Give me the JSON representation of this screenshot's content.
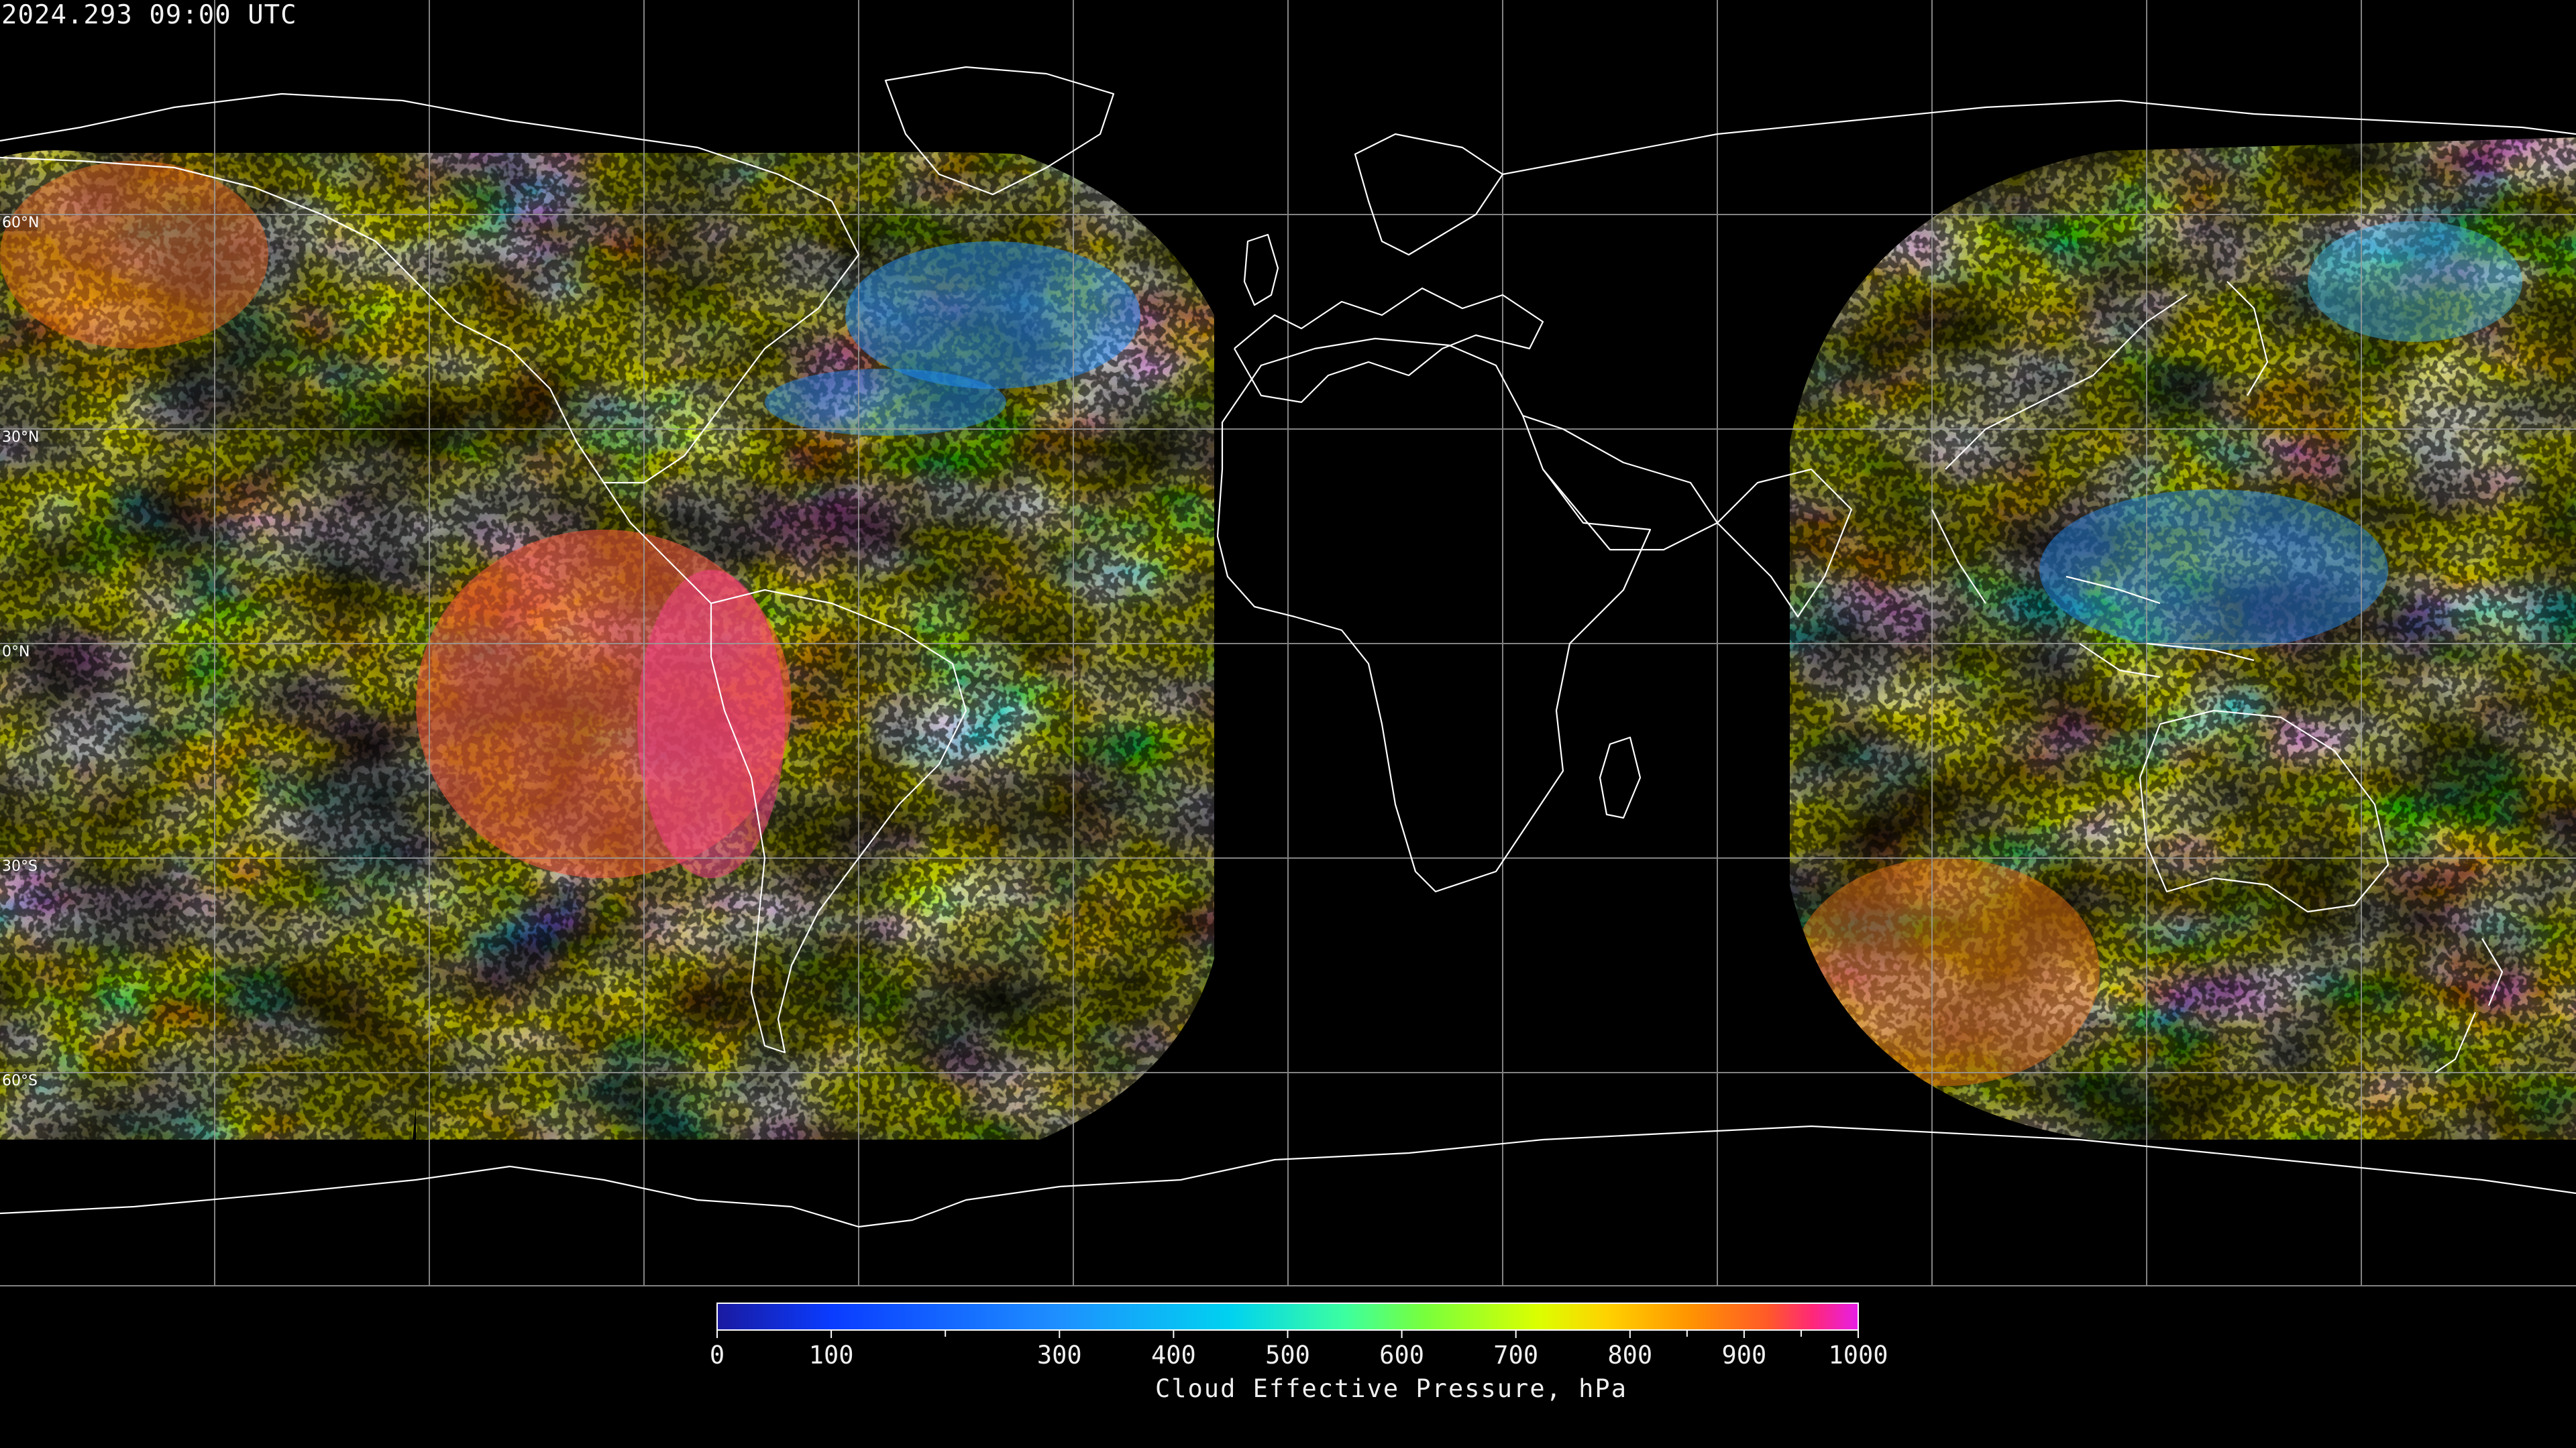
{
  "timestamp": "2024.293 09:00 UTC",
  "latitude_labels": [
    "60°N",
    "30°N",
    "0°N",
    "30°S",
    "60°S"
  ],
  "colorbar": {
    "title": "Cloud Effective Pressure, hPa",
    "tick_labels": [
      "0",
      "100",
      "300",
      "400",
      "500",
      "600",
      "700",
      "800",
      "900",
      "1000"
    ],
    "tick_values": [
      0,
      100,
      300,
      400,
      500,
      600,
      700,
      800,
      900,
      1000
    ],
    "minor_tick_values": [
      200,
      850,
      950
    ],
    "range": [
      0,
      1000
    ],
    "colors": [
      "#1a1aa0",
      "#0a3cff",
      "#1e90ff",
      "#00c8ff",
      "#3cffb4",
      "#78ff3c",
      "#dcff00",
      "#ffd200",
      "#ff9600",
      "#ff5a28",
      "#ff2878",
      "#e61ee6"
    ]
  },
  "map": {
    "projection": "equirectangular",
    "graticule_step_degrees": 30,
    "coastline_color": "#ffffff",
    "background": "#000000"
  }
}
